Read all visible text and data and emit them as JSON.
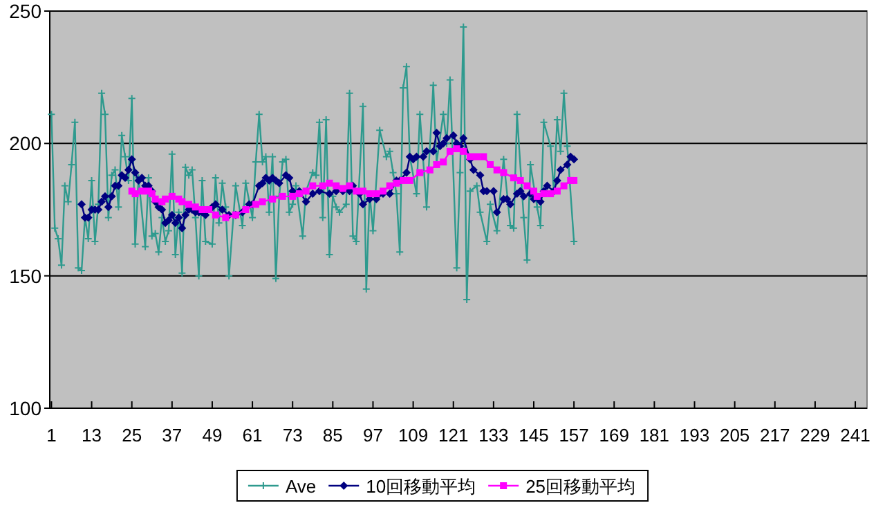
{
  "chart_data": {
    "type": "line",
    "xlim": [
      0.5,
      244.5
    ],
    "xticks": [
      1,
      13,
      25,
      37,
      49,
      61,
      73,
      85,
      97,
      109,
      121,
      133,
      145,
      157,
      169,
      181,
      193,
      205,
      217,
      229,
      241
    ],
    "ylim": [
      100,
      250
    ],
    "yticks": [
      100,
      150,
      200,
      250
    ],
    "grid": "y",
    "legend": "bottom",
    "line_style": "solid",
    "series": [
      {
        "name": "Ave",
        "color": "#2e9a8e",
        "marker": "cross",
        "x": [
          1,
          2,
          3,
          4,
          5,
          6,
          7,
          8,
          9,
          10,
          11,
          12,
          13,
          14,
          15,
          16,
          17,
          18,
          19,
          20,
          21,
          22,
          23,
          24,
          25,
          26,
          27,
          29,
          30,
          31,
          32,
          33,
          34,
          35,
          36,
          37,
          38,
          39,
          40,
          41,
          42,
          43,
          44,
          45,
          46,
          47,
          49,
          50,
          51,
          52,
          53,
          54,
          56,
          58,
          59,
          61,
          62,
          63,
          64,
          65,
          66,
          67,
          68,
          69,
          70,
          71,
          72,
          73,
          74,
          76,
          77,
          79,
          80,
          81,
          82,
          83,
          84,
          85,
          86,
          87,
          89,
          90,
          91,
          92,
          94,
          95,
          96,
          97,
          99,
          101,
          102,
          103,
          104,
          105,
          106,
          107,
          108,
          110,
          111,
          113,
          115,
          116,
          118,
          119,
          120,
          122,
          123,
          124,
          125,
          126,
          128,
          129,
          131,
          132,
          134,
          136,
          138,
          139,
          140,
          142,
          143,
          144,
          146,
          147,
          148,
          150,
          151,
          152,
          153,
          154,
          155,
          157
        ],
        "values": [
          211,
          168,
          164,
          154,
          184,
          178,
          192,
          208,
          153,
          152,
          172,
          164,
          186,
          163,
          177,
          219,
          211,
          172,
          188,
          190,
          176,
          203,
          195,
          186,
          217,
          162,
          187,
          161,
          187,
          165,
          166,
          159,
          172,
          163,
          167,
          196,
          158,
          174,
          151,
          191,
          188,
          190,
          172,
          150,
          186,
          163,
          162,
          187,
          170,
          185,
          176,
          150,
          184,
          169,
          185,
          172,
          193,
          211,
          193,
          195,
          174,
          195,
          149,
          180,
          193,
          194,
          174,
          177,
          184,
          165,
          182,
          189,
          188,
          208,
          172,
          209,
          158,
          180,
          176,
          174,
          177,
          219,
          165,
          163,
          214,
          145,
          181,
          167,
          205,
          195,
          197,
          189,
          181,
          159,
          221,
          229,
          195,
          181,
          211,
          176,
          222,
          193,
          211,
          200,
          224,
          153,
          189,
          244,
          141,
          182,
          184,
          174,
          163,
          177,
          167,
          194,
          169,
          168,
          211,
          172,
          156,
          192,
          176,
          169,
          208,
          199,
          182,
          209,
          197,
          219,
          199,
          163
        ]
      },
      {
        "name": "10回移動平均",
        "color": "#000080",
        "marker": "diamond",
        "x": [
          10,
          11,
          12,
          13,
          14,
          15,
          16,
          17,
          18,
          19,
          20,
          21,
          22,
          23,
          24,
          25,
          26,
          27,
          28,
          29,
          30,
          31,
          32,
          33,
          34,
          35,
          36,
          37,
          38,
          39,
          40,
          41,
          42,
          43,
          44,
          45,
          46,
          47,
          49,
          50,
          52,
          54,
          56,
          58,
          60,
          61,
          63,
          64,
          65,
          66,
          67,
          68,
          69,
          71,
          72,
          73,
          75,
          77,
          79,
          81,
          84,
          86,
          88,
          90,
          91,
          93,
          94,
          96,
          98,
          100,
          102,
          104,
          105,
          107,
          108,
          109,
          110,
          112,
          113,
          115,
          116,
          117,
          118,
          119,
          121,
          122,
          123,
          124,
          126,
          127,
          129,
          130,
          131,
          133,
          134,
          136,
          137,
          138,
          140,
          141,
          142,
          144,
          145,
          147,
          148,
          149,
          151,
          152,
          153,
          155,
          156,
          157
        ],
        "values": [
          177,
          172,
          172,
          175,
          175,
          175,
          178,
          180,
          176,
          180,
          184,
          184,
          188,
          187,
          190,
          194,
          189,
          186,
          187,
          184,
          184,
          182,
          178,
          176,
          175,
          170,
          171,
          173,
          170,
          172,
          168,
          173,
          175,
          175,
          174,
          174,
          174,
          173,
          176,
          177,
          175,
          173,
          173,
          174,
          177,
          177,
          184,
          185,
          187,
          186,
          187,
          186,
          185,
          188,
          187,
          182,
          182,
          178,
          181,
          182,
          181,
          182,
          182,
          182,
          184,
          181,
          177,
          179,
          179,
          181,
          181,
          186,
          186,
          189,
          195,
          194,
          195,
          195,
          197,
          197,
          204,
          199,
          200,
          202,
          203,
          200,
          199,
          202,
          194,
          190,
          188,
          182,
          182,
          182,
          174,
          179,
          179,
          177,
          181,
          182,
          180,
          181,
          179,
          178,
          182,
          184,
          182,
          186,
          190,
          192,
          195,
          194
        ]
      },
      {
        "name": "25回移動平均",
        "color": "#ff00ff",
        "marker": "square",
        "x": [
          25,
          26,
          28,
          30,
          31,
          32,
          34,
          35,
          37,
          39,
          40,
          42,
          44,
          46,
          48,
          50,
          53,
          56,
          59,
          62,
          64,
          67,
          70,
          73,
          75,
          77,
          79,
          82,
          84,
          86,
          88,
          90,
          92,
          94,
          96,
          98,
          100,
          102,
          104,
          106,
          108,
          111,
          114,
          116,
          118,
          120,
          122,
          124,
          126,
          128,
          130,
          132,
          134,
          136,
          139,
          141,
          143,
          145,
          146,
          148,
          150,
          152,
          154,
          156,
          157
        ],
        "values": [
          182,
          181,
          182,
          182,
          181,
          179,
          178,
          179,
          180,
          179,
          178,
          177,
          176,
          175,
          175,
          173,
          172,
          173,
          175,
          177,
          178,
          179,
          180,
          180,
          181,
          182,
          184,
          184,
          185,
          184,
          183,
          184,
          182,
          182,
          181,
          181,
          182,
          184,
          185,
          186,
          186,
          189,
          190,
          192,
          193,
          197,
          198,
          197,
          195,
          195,
          195,
          192,
          190,
          189,
          187,
          186,
          184,
          182,
          180,
          181,
          181,
          182,
          184,
          186,
          186
        ]
      }
    ]
  }
}
